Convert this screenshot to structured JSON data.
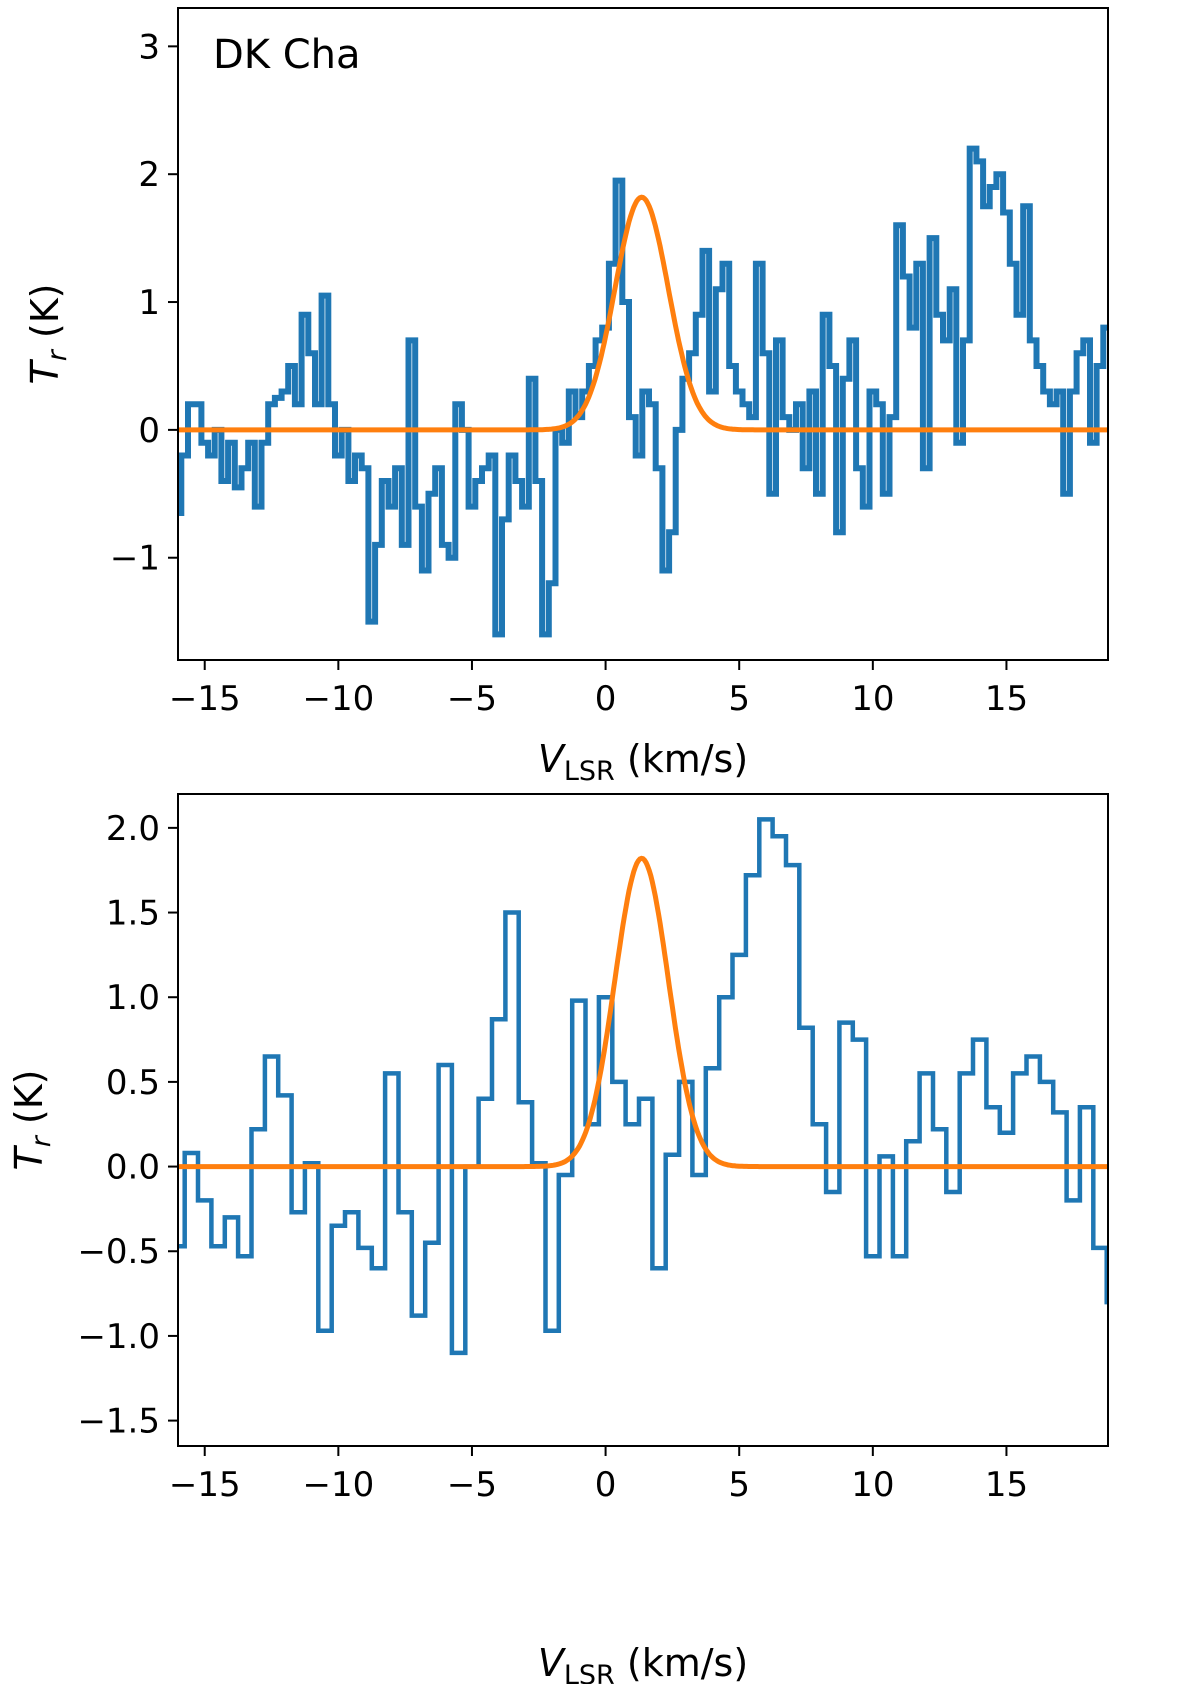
{
  "chart_data": [
    {
      "type": "line",
      "subtype": "step",
      "annotation": "DK Cha",
      "xlabel": {
        "main": "V",
        "sub": "LSR",
        "unit": " (km/s)"
      },
      "ylabel": {
        "main": "T",
        "sub": "r",
        "unit": " (K)"
      },
      "xlim": [
        -16,
        18.8
      ],
      "ylim": [
        -1.8,
        3.3
      ],
      "xticks": [
        -15,
        -10,
        -5,
        0,
        5,
        10,
        15
      ],
      "xtick_labels": [
        "−15",
        "−10",
        "−5",
        "0",
        "5",
        "10",
        "15"
      ],
      "yticks": [
        -1,
        0,
        1,
        2,
        3
      ],
      "ytick_labels": [
        "−1",
        "0",
        "1",
        "2",
        "3"
      ],
      "series": [
        {
          "name": "spectrum",
          "color": "#1f77b4",
          "style": "steps-mid",
          "x_start": -16.0,
          "x_step": 0.25,
          "values": [
            -0.65,
            -0.2,
            0.2,
            0.2,
            -0.1,
            -0.2,
            0.0,
            -0.4,
            -0.1,
            -0.45,
            -0.3,
            -0.1,
            -0.6,
            -0.1,
            0.2,
            0.25,
            0.3,
            0.5,
            0.2,
            0.9,
            0.6,
            0.2,
            1.05,
            0.2,
            -0.2,
            0.0,
            -0.4,
            -0.2,
            -0.3,
            -1.5,
            -0.9,
            -0.4,
            -0.6,
            -0.3,
            -0.9,
            0.7,
            -0.6,
            -1.1,
            -0.5,
            -0.3,
            -0.9,
            -1.0,
            0.2,
            0.0,
            -0.6,
            -0.4,
            -0.3,
            -0.2,
            -1.6,
            -0.7,
            -0.2,
            -0.4,
            -0.6,
            0.4,
            -0.4,
            -1.6,
            -1.2,
            0.0,
            -0.1,
            0.3,
            0.1,
            0.3,
            0.5,
            0.7,
            0.8,
            1.3,
            1.95,
            1.0,
            0.1,
            -0.2,
            0.3,
            0.2,
            -0.3,
            -1.1,
            -0.8,
            0.0,
            0.4,
            0.6,
            0.9,
            1.4,
            0.3,
            1.1,
            1.3,
            0.5,
            0.3,
            0.2,
            0.1,
            1.3,
            0.6,
            -0.5,
            0.7,
            0.1,
            0.0,
            0.2,
            -0.3,
            0.3,
            -0.5,
            0.9,
            0.5,
            -0.8,
            0.4,
            0.7,
            -0.3,
            -0.6,
            0.3,
            0.2,
            -0.5,
            0.1,
            1.6,
            1.2,
            0.8,
            1.3,
            -0.3,
            1.5,
            0.9,
            0.7,
            1.1,
            -0.1,
            0.7,
            2.2,
            2.1,
            1.75,
            1.9,
            2.0,
            1.7,
            1.3,
            0.9,
            1.75,
            0.7,
            0.5,
            0.3,
            0.2,
            0.3,
            -0.5,
            0.3,
            0.6,
            0.7,
            -0.1,
            0.5,
            0.8,
            1.0,
            0.7,
            0.4,
            0.3,
            -0.3,
            -0.6,
            -0.3,
            0.6,
            0.3,
            0.0,
            0.4,
            -0.4,
            -0.2,
            -0.6,
            -0.5,
            0.0,
            0.4,
            -0.3,
            0.0,
            0.2,
            0.6,
            0.2,
            0.6,
            0.5,
            -0.5,
            1.0,
            0.4,
            0.2,
            0.6,
            -0.3,
            -0.9,
            0.5,
            0.3,
            -0.1,
            0.5,
            0.4,
            0.5,
            0.6,
            0.9,
            0.8,
            0.2,
            0.0,
            -0.2,
            0.5,
            -0.5,
            -0.8,
            0.5,
            -0.1,
            0.2,
            0.5,
            0.3,
            0.3,
            0.5,
            -0.2,
            -0.4,
            -1.1,
            -0.6,
            0.4,
            0.6,
            0.8,
            -1.1,
            0.2,
            0.3,
            0.6,
            0.3,
            0.5,
            0.8,
            0.2,
            0.3,
            0.8,
            -0.4,
            -0.9,
            0.3,
            0.3,
            0.6,
            0.4,
            0.0,
            0.2,
            0.2,
            -0.2,
            0.2,
            -1.1,
            0.2,
            0.2,
            -0.5,
            0.4,
            0.3,
            0.4,
            0.9,
            0.4,
            0.6,
            0.8,
            -0.3,
            0.1,
            0.0,
            0.1,
            -0.3,
            0.3,
            0.2,
            -0.2,
            -0.4,
            0.0,
            0.2,
            0.1,
            0.2,
            -0.1,
            -0.3,
            0.2,
            0.0,
            0.2,
            0.4,
            -0.2,
            0.0,
            0.2,
            0.8,
            -0.4,
            0.3,
            0.3,
            0.2,
            -0.1,
            -0.5,
            0.2,
            0.6,
            0.8,
            0.5,
            0.2,
            -0.6,
            -0.5,
            -0.7,
            0.0,
            0.0,
            -0.7,
            -0.3,
            -0.7,
            -1.2,
            -1.8,
            -0.7,
            -0.7,
            -0.7,
            -1.7,
            -1.2,
            -0.8,
            0.0,
            0.2,
            -0.8,
            0.0,
            -0.6,
            0.0,
            -0.4,
            0.0,
            0.0,
            -0.2,
            -1.1,
            1.05,
            0.2,
            0.6,
            0.7,
            0.7,
            0.4,
            0.6,
            0.3,
            0.3,
            0.7,
            0.5,
            0.7,
            1.2,
            0.6,
            0.6,
            0.3,
            0.0,
            0.2,
            0.5
          ]
        },
        {
          "name": "gaussian_fit",
          "color": "#ff7f0e",
          "style": "gaussian",
          "amplitude": 1.82,
          "center": 1.35,
          "sigma": 1.0
        }
      ]
    },
    {
      "type": "line",
      "subtype": "step",
      "annotation": "",
      "xlabel": {
        "main": "V",
        "sub": "LSR",
        "unit": " (km/s)"
      },
      "ylabel": {
        "main": "T",
        "sub": "r",
        "unit": " (K)"
      },
      "xlim": [
        -16,
        18.8
      ],
      "ylim": [
        -1.65,
        2.2
      ],
      "xticks": [
        -15,
        -10,
        -5,
        0,
        5,
        10,
        15
      ],
      "xtick_labels": [
        "−15",
        "−10",
        "−5",
        "0",
        "5",
        "10",
        "15"
      ],
      "yticks": [
        -1.5,
        -1.0,
        -0.5,
        0.0,
        0.5,
        1.0,
        1.5,
        2.0
      ],
      "ytick_labels": [
        "−1.5",
        "−1.0",
        "−0.5",
        "0.0",
        "0.5",
        "1.0",
        "1.5",
        "2.0"
      ],
      "series": [
        {
          "name": "spectrum",
          "color": "#1f77b4",
          "style": "steps-mid",
          "x_start": -16.0,
          "x_step": 0.5,
          "values": [
            -0.47,
            0.08,
            -0.2,
            -0.47,
            -0.3,
            -0.53,
            0.22,
            0.65,
            0.42,
            -0.27,
            0.02,
            -0.97,
            -0.35,
            -0.27,
            -0.48,
            -0.6,
            0.55,
            -0.27,
            -0.88,
            -0.45,
            0.6,
            -1.1,
            0.0,
            0.4,
            0.87,
            1.5,
            0.38,
            0.02,
            -0.97,
            -0.05,
            0.98,
            0.25,
            1.0,
            0.5,
            0.25,
            0.4,
            -0.6,
            0.07,
            0.5,
            -0.05,
            0.58,
            1.0,
            1.25,
            1.72,
            2.05,
            1.95,
            1.78,
            0.82,
            0.25,
            -0.15,
            0.85,
            0.75,
            -0.53,
            0.06,
            -0.53,
            0.15,
            0.55,
            0.22,
            -0.15,
            0.55,
            0.75,
            0.35,
            0.2,
            0.55,
            0.65,
            0.5,
            0.32,
            -0.2,
            0.35,
            -0.48,
            -0.8,
            0.1,
            -0.1,
            -0.27,
            0.42,
            0.05,
            0.68,
            0.0,
            -0.27,
            0.0,
            -0.3,
            0.05,
            -0.48,
            -0.35,
            -1.47,
            -0.72,
            -0.98,
            -1.15,
            -0.35,
            0.05,
            -0.2,
            -0.48,
            0.32,
            0.82,
            -0.15
          ]
        },
        {
          "name": "gaussian_fit",
          "color": "#ff7f0e",
          "style": "gaussian",
          "amplitude": 1.82,
          "center": 1.35,
          "sigma": 1.0
        }
      ]
    }
  ]
}
